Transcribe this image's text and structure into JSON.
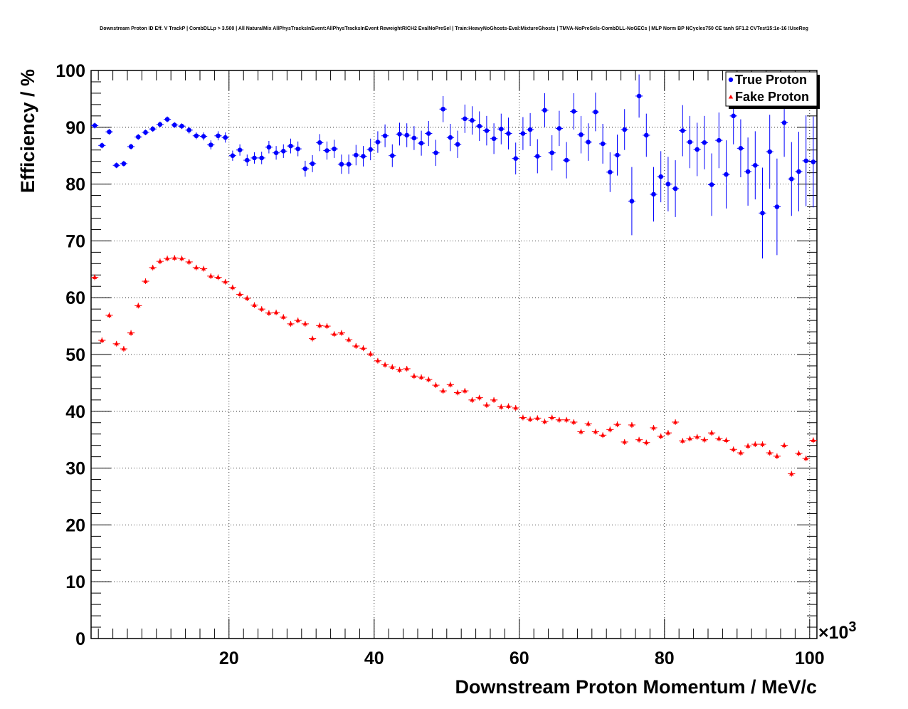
{
  "chart_data": {
    "type": "scatter",
    "title": "Downstream Proton ID Eff. V TrackP | CombDLLp > 3.500 | All NaturalMix AllPhysTracksInEvent:AllPhysTracksInEvent ReweightRICH2 EvalNoPreSel | Train:HeavyNoGhosts-Eval:MixtureGhosts | TMVA-NoPreSels-CombDLL-NoGECs | MLP Norm BP NCycles750 CE tanh SF1.2 CVTest15:1e-16 !UseReg",
    "xlabel": "Downstream Proton Momentum / MeV/c",
    "ylabel": "Efficiency / %",
    "x_exponent_label": "×10",
    "x_exponent_power": "3",
    "xlim": [
      1,
      101
    ],
    "ylim": [
      0,
      100
    ],
    "x_ticks": [
      "20",
      "40",
      "60",
      "80",
      "100"
    ],
    "y_ticks": [
      "0",
      "10",
      "20",
      "30",
      "40",
      "50",
      "60",
      "70",
      "80",
      "90",
      "100"
    ],
    "grid": true,
    "legend_position": "top-right",
    "series": [
      {
        "name": "True Proton",
        "color": "#0000ff",
        "marker": "circle",
        "x": [
          1.5,
          2.5,
          3.5,
          4.5,
          5.5,
          6.5,
          7.5,
          8.5,
          9.5,
          10.5,
          11.5,
          12.5,
          13.5,
          14.5,
          15.5,
          16.5,
          17.5,
          18.5,
          19.5,
          20.5,
          21.5,
          22.5,
          23.5,
          24.5,
          25.5,
          26.5,
          27.5,
          28.5,
          29.5,
          30.5,
          31.5,
          32.5,
          33.5,
          34.5,
          35.5,
          36.5,
          37.5,
          38.5,
          39.5,
          40.5,
          41.5,
          42.5,
          43.5,
          44.5,
          45.5,
          46.5,
          47.5,
          48.5,
          49.5,
          50.5,
          51.5,
          52.5,
          53.5,
          54.5,
          55.5,
          56.5,
          57.5,
          58.5,
          59.5,
          60.5,
          61.5,
          62.5,
          63.5,
          64.5,
          65.5,
          66.5,
          67.5,
          68.5,
          69.5,
          70.5,
          71.5,
          72.5,
          73.5,
          74.5,
          75.5,
          76.5,
          77.5,
          78.5,
          79.5,
          80.5,
          81.5,
          82.5,
          83.5,
          84.5,
          85.5,
          86.5,
          87.5,
          88.5,
          89.5,
          90.5,
          91.5,
          92.5,
          93.5,
          94.5,
          95.5,
          96.5,
          97.5,
          98.5,
          99.5,
          100.5
        ],
        "y": [
          90.3,
          86.8,
          89.2,
          83.3,
          83.6,
          86.6,
          88.3,
          89.1,
          89.7,
          90.5,
          91.4,
          90.4,
          90.2,
          89.5,
          88.5,
          88.4,
          86.9,
          88.5,
          88.2,
          85.0,
          86.0,
          84.2,
          84.6,
          84.6,
          86.5,
          85.5,
          85.8,
          86.7,
          86.2,
          82.7,
          83.6,
          87.3,
          85.9,
          86.2,
          83.5,
          83.5,
          85.1,
          84.9,
          86.1,
          87.4,
          88.5,
          85.0,
          88.8,
          88.6,
          88.1,
          87.2,
          88.9,
          85.5,
          93.2,
          88.2,
          87.0,
          91.5,
          91.2,
          90.2,
          89.4,
          88.0,
          89.7,
          88.9,
          84.5,
          88.9,
          89.6,
          84.9,
          93.0,
          85.5,
          89.8,
          84.2,
          92.8,
          88.7,
          87.4,
          92.7,
          87.1,
          82.1,
          85.1,
          89.6,
          77.0,
          95.5,
          88.6,
          78.2,
          81.3,
          80.0,
          79.2,
          89.4,
          87.4,
          86.1,
          87.3,
          79.9,
          87.7,
          81.7,
          92.0,
          86.3,
          82.2,
          83.3,
          74.9,
          85.7,
          76.0,
          90.8,
          80.9,
          82.2,
          84.1,
          83.9
        ],
        "yerr": [
          0.5,
          0.5,
          0.5,
          0.5,
          0.5,
          0.5,
          0.5,
          0.5,
          0.5,
          0.5,
          0.5,
          0.5,
          0.5,
          0.6,
          0.6,
          0.7,
          0.8,
          0.8,
          0.9,
          0.9,
          1.0,
          1.0,
          1.0,
          1.1,
          1.1,
          1.2,
          1.2,
          1.3,
          1.3,
          1.4,
          1.5,
          1.5,
          1.6,
          1.6,
          1.7,
          1.7,
          1.8,
          1.8,
          1.9,
          1.9,
          2.0,
          2.0,
          2.0,
          2.1,
          2.1,
          2.2,
          2.2,
          2.3,
          2.3,
          2.4,
          2.4,
          2.5,
          2.5,
          2.6,
          2.6,
          2.7,
          2.7,
          2.8,
          2.8,
          2.9,
          2.9,
          3.0,
          3.0,
          3.1,
          3.1,
          3.2,
          3.2,
          3.3,
          3.3,
          3.4,
          3.5,
          3.5,
          3.6,
          3.6,
          6.0,
          3.8,
          3.8,
          4.8,
          4.5,
          4.8,
          5.0,
          4.5,
          4.6,
          4.7,
          4.7,
          5.5,
          4.9,
          6.0,
          5.0,
          5.1,
          6.0,
          6.0,
          8.0,
          6.5,
          8.5,
          6.0,
          6.5,
          7.0,
          8.0,
          8.0
        ]
      },
      {
        "name": "Fake Proton",
        "color": "#ff0000",
        "marker": "triangle",
        "x": [
          1.5,
          2.5,
          3.5,
          4.5,
          5.5,
          6.5,
          7.5,
          8.5,
          9.5,
          10.5,
          11.5,
          12.5,
          13.5,
          14.5,
          15.5,
          16.5,
          17.5,
          18.5,
          19.5,
          20.5,
          21.5,
          22.5,
          23.5,
          24.5,
          25.5,
          26.5,
          27.5,
          28.5,
          29.5,
          30.5,
          31.5,
          32.5,
          33.5,
          34.5,
          35.5,
          36.5,
          37.5,
          38.5,
          39.5,
          40.5,
          41.5,
          42.5,
          43.5,
          44.5,
          45.5,
          46.5,
          47.5,
          48.5,
          49.5,
          50.5,
          51.5,
          52.5,
          53.5,
          54.5,
          55.5,
          56.5,
          57.5,
          58.5,
          59.5,
          60.5,
          61.5,
          62.5,
          63.5,
          64.5,
          65.5,
          66.5,
          67.5,
          68.5,
          69.5,
          70.5,
          71.5,
          72.5,
          73.5,
          74.5,
          75.5,
          76.5,
          77.5,
          78.5,
          79.5,
          80.5,
          81.5,
          82.5,
          83.5,
          84.5,
          85.5,
          86.5,
          87.5,
          88.5,
          89.5,
          90.5,
          91.5,
          92.5,
          93.5,
          94.5,
          95.5,
          96.5,
          97.5,
          98.5,
          99.5,
          100.5
        ],
        "y": [
          63.6,
          52.5,
          56.9,
          51.9,
          51.0,
          53.8,
          58.6,
          62.9,
          65.3,
          66.4,
          66.9,
          67.0,
          66.9,
          66.3,
          65.3,
          65.1,
          63.8,
          63.6,
          62.8,
          61.8,
          60.6,
          59.9,
          58.7,
          58.0,
          57.3,
          57.4,
          56.6,
          55.4,
          56.0,
          55.4,
          52.8,
          55.1,
          55.0,
          53.6,
          53.8,
          52.6,
          51.5,
          51.1,
          50.1,
          48.9,
          48.2,
          47.8,
          47.3,
          47.5,
          46.2,
          46.0,
          45.6,
          44.6,
          43.6,
          44.7,
          43.3,
          43.6,
          42.0,
          42.4,
          41.1,
          42.0,
          40.8,
          40.9,
          40.6,
          38.9,
          38.6,
          38.8,
          38.2,
          38.9,
          38.5,
          38.5,
          38.1,
          36.4,
          37.8,
          36.4,
          35.8,
          36.8,
          37.7,
          34.6,
          37.6,
          35.0,
          34.5,
          37.1,
          35.6,
          36.2,
          38.1,
          34.8,
          35.2,
          35.5,
          35.0,
          36.2,
          35.2,
          34.9,
          33.3,
          32.7,
          33.9,
          34.2,
          34.2,
          32.7,
          32.1,
          34.0,
          29.0,
          32.6,
          31.7,
          34.9
        ]
      }
    ]
  }
}
